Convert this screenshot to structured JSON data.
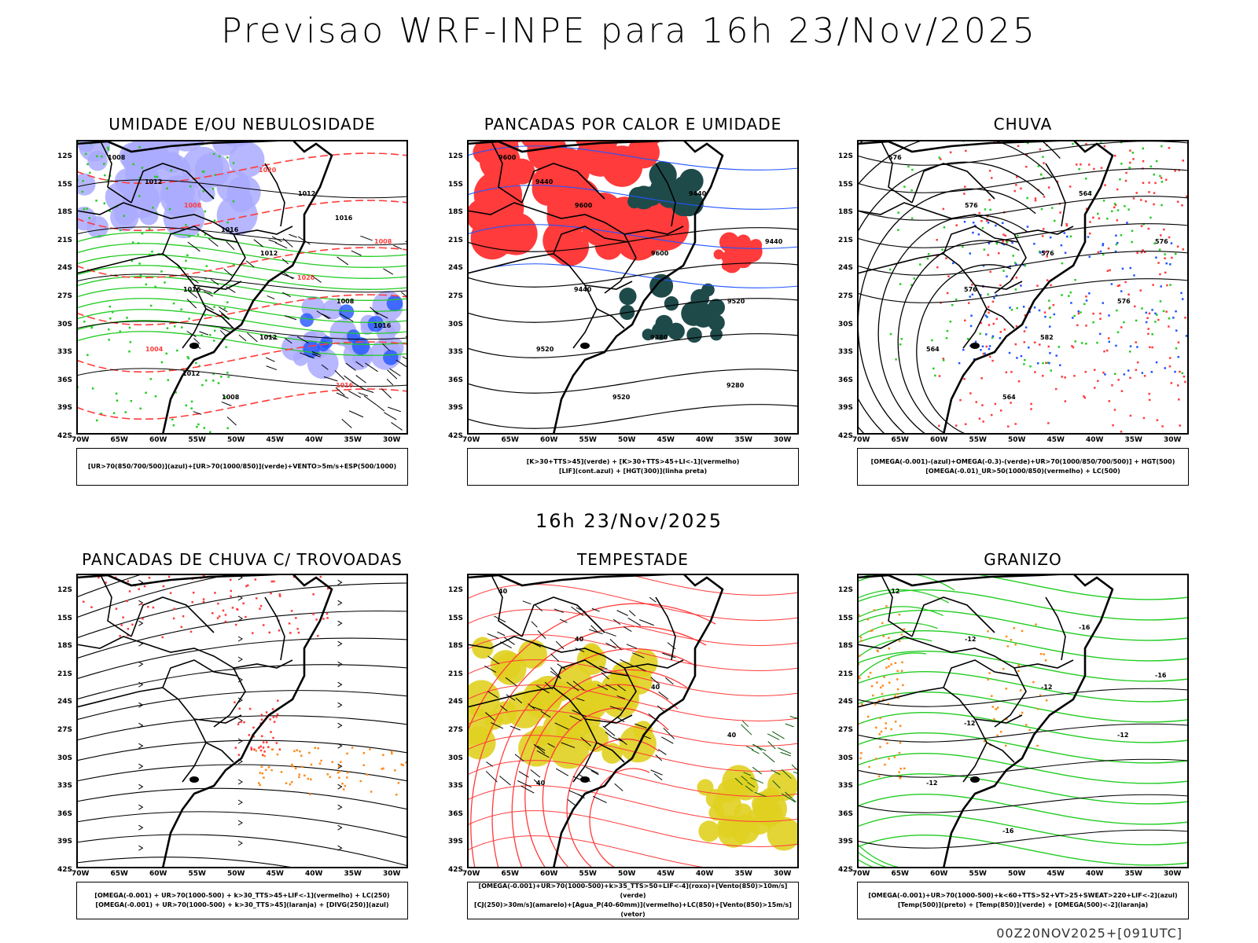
{
  "title": "Previsao WRF-INPE  para 16h 23/Nov/2025",
  "mid_title": "16h 23/Nov/2025",
  "footer": "00Z20NOV2025+[091UTC]",
  "lat_labels": [
    "12S",
    "15S",
    "18S",
    "21S",
    "24S",
    "27S",
    "30S",
    "33S",
    "36S",
    "39S",
    "42S"
  ],
  "lon_labels": [
    "70W",
    "65W",
    "60W",
    "55W",
    "50W",
    "45W",
    "40W",
    "35W",
    "30W"
  ],
  "colors": {
    "red": "#ff3b3b",
    "green": "#22cc22",
    "lavender": "#aaaaff",
    "blue": "#2255ff",
    "dark_teal": "#1f4a4a",
    "yellow": "#e0d020",
    "orange": "#ff8a1a"
  },
  "panels": [
    {
      "id": "umidade",
      "title": "UMIDADE E/OU NEBULOSIDADE",
      "legend": [
        "[UR>70(850/700/500)](azul)+[UR>70(1000/850)](verde)+VENTO>5m/s+ESP(500/1000)"
      ],
      "contour_labels": [
        "1008",
        "1008",
        "1012",
        "1008",
        "1004",
        "1008",
        "1012",
        "1008",
        "1016",
        "1012",
        "1016",
        "1012",
        "1016",
        "1020",
        "1016",
        "1012",
        "1020",
        "1016"
      ]
    },
    {
      "id": "pancadas-calor",
      "title": "PANCADAS POR CALOR E UMIDADE",
      "legend": [
        "[K>30+TTS>45](verde)  +  [K>30+TTS>45+LI<-1](vermelho)",
        "[LIF](cont.azul)  +  [HGT(300)](linha preta)"
      ],
      "contour_labels": [
        "9600",
        "9600",
        "9600",
        "9520",
        "9520",
        "9520",
        "9440",
        "9440",
        "9440",
        "9380",
        "9280",
        "9440"
      ]
    },
    {
      "id": "chuva",
      "title": "CHUVA",
      "legend": [
        "[OMEGA(-0.001)-(azul)+OMEGA(-0.3)-(verde)+UR>70(1000/850/700/500)]  +  HGT(500)",
        "[OMEGA(-0.01)_UR>50(1000/850)(vermelho)  +  LC(500)"
      ],
      "contour_labels": [
        "576",
        "576",
        "576",
        "576",
        "564",
        "564",
        "564",
        "576",
        "576",
        "582"
      ]
    },
    {
      "id": "trovoadas",
      "title": "PANCADAS DE CHUVA C/ TROVOADAS",
      "legend": [
        "[OMEGA(-0.001)  +  UR>70(1000-500)  +  k>30_TTS>45+LIF<-1](vermelho)  +  LC(250)",
        "[OMEGA(-0.001)  +  UR>70(1000-500)  +  k>30_TTS>45](laranja)  +  [DIVG(250)](azul)"
      ],
      "contour_labels": []
    },
    {
      "id": "tempestade",
      "title": "TEMPESTADE",
      "legend": [
        "[OMEGA(-0.001)+UR>70(1000-500)+k>35_TTS>50+LIF<-4](roxo)+[Vento(850)>10m/s](verde)",
        "[CJ(250)>30m/s](amarelo)+[Agua_P(40-60mm)](vermelho)+LC(850)+[Vento(850)>15m/s](vetor)"
      ],
      "contour_labels": [
        "40",
        "40",
        "40",
        "40",
        "40"
      ]
    },
    {
      "id": "granizo",
      "title": "GRANIZO",
      "legend": [
        "[OMEGA(-0.001)+UR>70(1000-500)+k<60+TTS>52+VT>25+SWEAT>220+LIF<-2](azul)",
        "[Temp(500)](preto)  +  [Temp(850)](verde)  +  [OMEGA(500)<-2](laranja)"
      ],
      "contour_labels": [
        "-12",
        "-12",
        "-12",
        "-12",
        "-12",
        "-16",
        "-16",
        "-16",
        "-12"
      ]
    }
  ]
}
